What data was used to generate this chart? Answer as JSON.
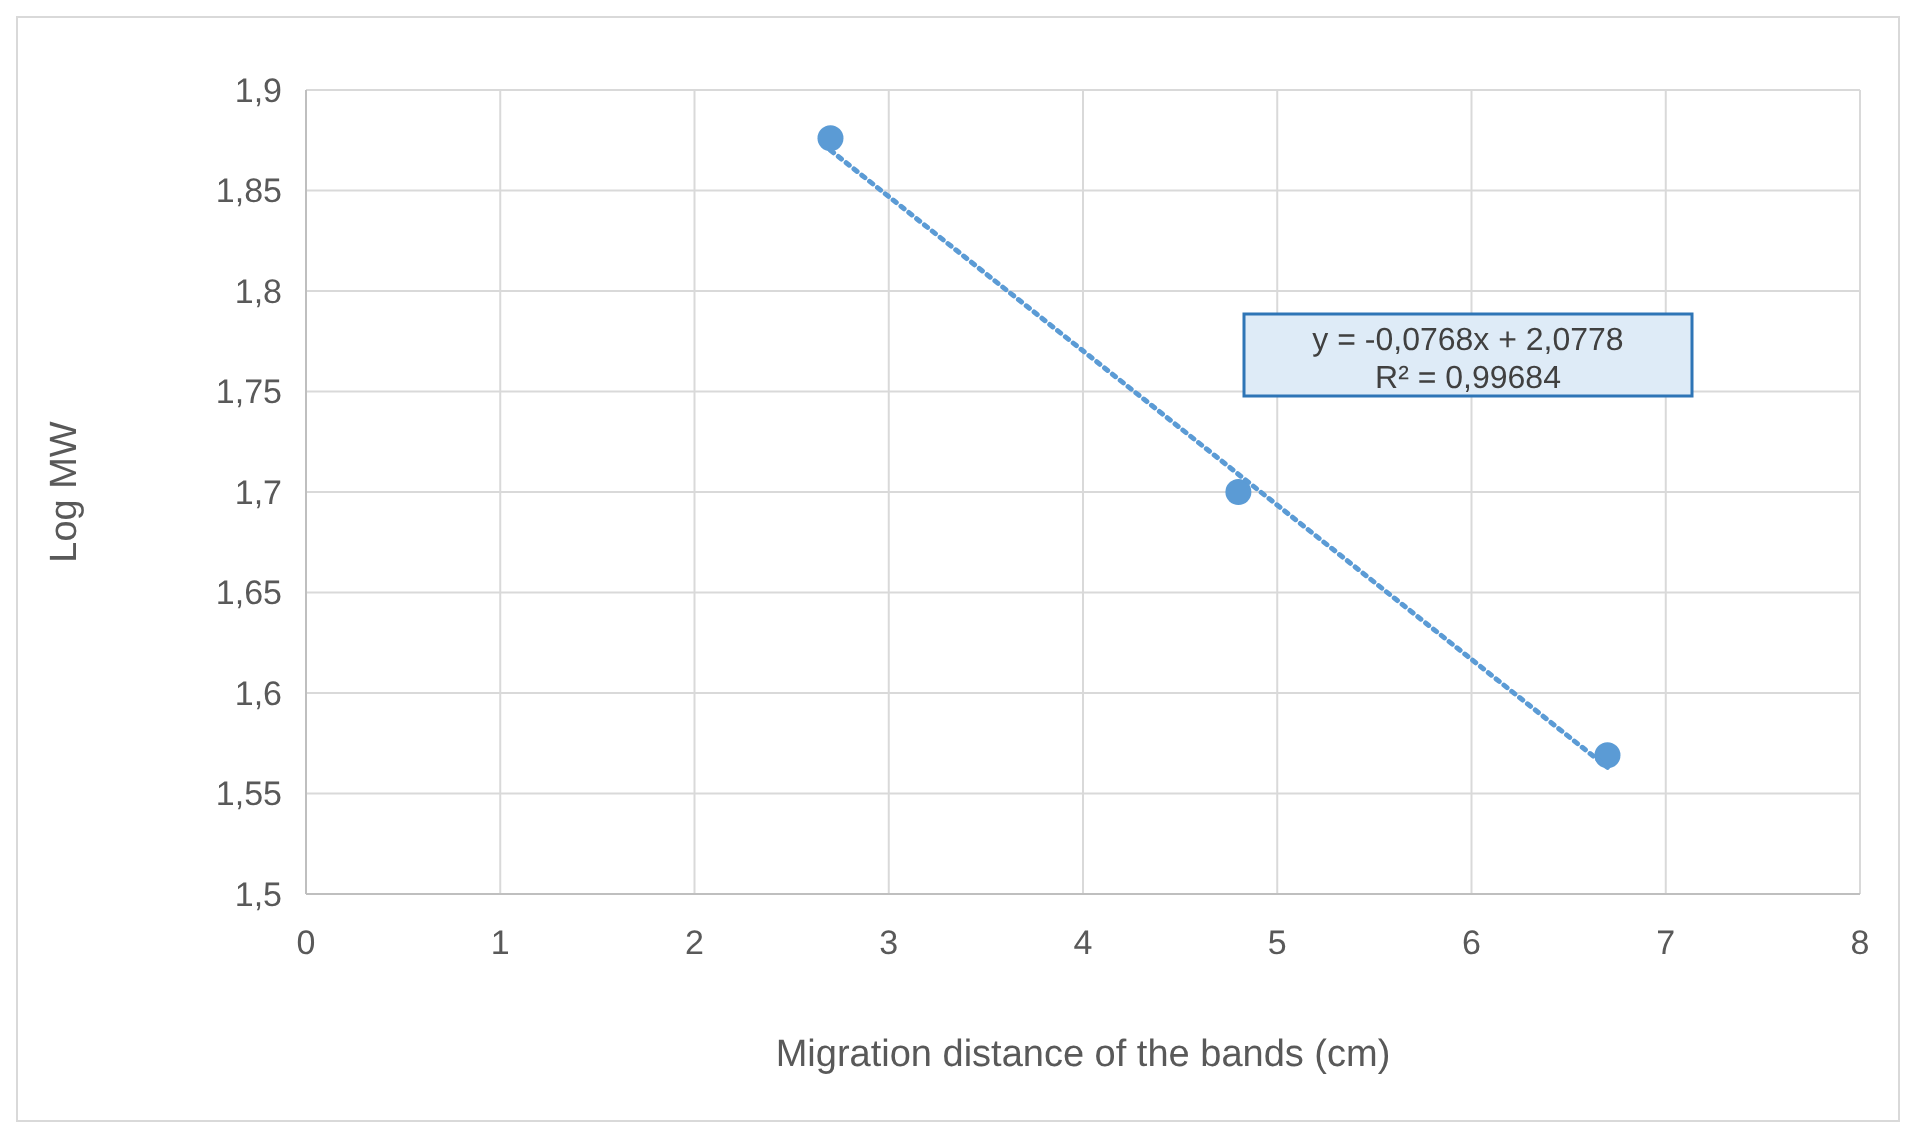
{
  "chart_data": {
    "type": "scatter",
    "xlabel": "Migration distance of the bands (cm)",
    "ylabel": "Log MW",
    "xlim": [
      0,
      8
    ],
    "xticks": [
      0,
      1,
      2,
      3,
      4,
      5,
      6,
      7,
      8
    ],
    "ylim": [
      1.5,
      1.9
    ],
    "yticks": [
      {
        "value": 1.5,
        "label": "1,5"
      },
      {
        "value": 1.55,
        "label": "1,55"
      },
      {
        "value": 1.6,
        "label": "1,6"
      },
      {
        "value": 1.65,
        "label": "1,65"
      },
      {
        "value": 1.7,
        "label": "1,7"
      },
      {
        "value": 1.75,
        "label": "1,75"
      },
      {
        "value": 1.8,
        "label": "1,8"
      },
      {
        "value": 1.85,
        "label": "1,85"
      },
      {
        "value": 1.9,
        "label": "1,9"
      }
    ],
    "grid": true,
    "series": [
      {
        "color": "#5b9bd5",
        "marker": "circle",
        "x": [
          2.7,
          4.8,
          6.7
        ],
        "values": [
          1.876,
          1.7,
          1.569
        ]
      },
      {
        "type": "line",
        "color": "#5b9bd5",
        "marker": "none",
        "line_style": "dotted",
        "x": [
          2.7,
          6.7
        ],
        "values": [
          1.87,
          1.563
        ]
      }
    ],
    "annotations": [
      "y = -0,0768x + 2,0778",
      "R² = 0,99684"
    ]
  }
}
